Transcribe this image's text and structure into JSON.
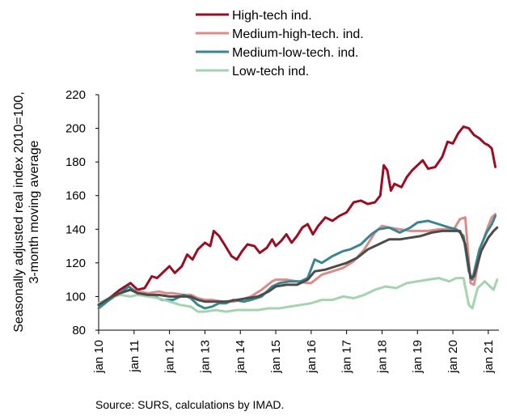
{
  "chart_data": {
    "type": "line",
    "ylabel": [
      "Seasonally adjusted real index 2010=100,",
      "3-month moving average"
    ],
    "ylim": [
      80,
      220
    ],
    "yticks": [
      80,
      100,
      120,
      140,
      160,
      180,
      200,
      220
    ],
    "xlim": [
      2010,
      2021.3
    ],
    "xticks": [
      {
        "label": "jan 10",
        "value": 2010
      },
      {
        "label": "jan 11",
        "value": 2011
      },
      {
        "label": "jan 12",
        "value": 2012
      },
      {
        "label": "jan 13",
        "value": 2013
      },
      {
        "label": "jan 14",
        "value": 2014
      },
      {
        "label": "jan 15",
        "value": 2015
      },
      {
        "label": "jan 16",
        "value": 2016
      },
      {
        "label": "jan 17",
        "value": 2017
      },
      {
        "label": "jan 18",
        "value": 2018
      },
      {
        "label": "jan 19",
        "value": 2019
      },
      {
        "label": "jan 20",
        "value": 2020
      },
      {
        "label": "jan 21",
        "value": 2021
      }
    ],
    "grid": false,
    "legend_position": "top",
    "source": "Source: SURS, calculations by IMAD.",
    "series": [
      {
        "name": "High-tech ind.",
        "color": "#9b0d22",
        "legend": true,
        "points": [
          [
            2010.0,
            95
          ],
          [
            2010.3,
            99
          ],
          [
            2010.6,
            104
          ],
          [
            2010.9,
            108
          ],
          [
            2011.1,
            104
          ],
          [
            2011.3,
            105
          ],
          [
            2011.5,
            112
          ],
          [
            2011.65,
            111
          ],
          [
            2011.8,
            114
          ],
          [
            2012.0,
            118
          ],
          [
            2012.15,
            114
          ],
          [
            2012.35,
            118
          ],
          [
            2012.5,
            125
          ],
          [
            2012.65,
            122
          ],
          [
            2012.8,
            128
          ],
          [
            2013.0,
            132
          ],
          [
            2013.15,
            130
          ],
          [
            2013.25,
            139
          ],
          [
            2013.4,
            136
          ],
          [
            2013.55,
            131
          ],
          [
            2013.75,
            124
          ],
          [
            2013.9,
            122
          ],
          [
            2014.05,
            127
          ],
          [
            2014.2,
            131
          ],
          [
            2014.4,
            130
          ],
          [
            2014.55,
            126
          ],
          [
            2014.75,
            129
          ],
          [
            2014.9,
            134
          ],
          [
            2015.0,
            130
          ],
          [
            2015.15,
            133
          ],
          [
            2015.3,
            137
          ],
          [
            2015.45,
            132
          ],
          [
            2015.6,
            136
          ],
          [
            2015.75,
            141
          ],
          [
            2015.9,
            143
          ],
          [
            2016.05,
            137
          ],
          [
            2016.2,
            142
          ],
          [
            2016.4,
            147
          ],
          [
            2016.6,
            145
          ],
          [
            2016.8,
            148
          ],
          [
            2017.0,
            150
          ],
          [
            2017.2,
            156
          ],
          [
            2017.4,
            157
          ],
          [
            2017.6,
            155
          ],
          [
            2017.8,
            156
          ],
          [
            2017.95,
            160
          ],
          [
            2018.05,
            178
          ],
          [
            2018.15,
            175
          ],
          [
            2018.25,
            163
          ],
          [
            2018.35,
            167
          ],
          [
            2018.55,
            165
          ],
          [
            2018.7,
            171
          ],
          [
            2018.85,
            175
          ],
          [
            2019.0,
            178
          ],
          [
            2019.15,
            181
          ],
          [
            2019.3,
            176
          ],
          [
            2019.5,
            177
          ],
          [
            2019.7,
            183
          ],
          [
            2019.85,
            192
          ],
          [
            2020.0,
            191
          ],
          [
            2020.15,
            197
          ],
          [
            2020.3,
            201
          ],
          [
            2020.45,
            200
          ],
          [
            2020.6,
            196
          ],
          [
            2020.75,
            194
          ],
          [
            2020.9,
            191
          ],
          [
            2021.0,
            190
          ],
          [
            2021.1,
            188
          ],
          [
            2021.2,
            177
          ]
        ]
      },
      {
        "name": "Medium-high-tech. ind.",
        "color": "#dc8b87",
        "legend": true,
        "points": [
          [
            2010.0,
            95
          ],
          [
            2010.3,
            99
          ],
          [
            2010.6,
            102
          ],
          [
            2010.9,
            104
          ],
          [
            2011.1,
            103
          ],
          [
            2011.4,
            102
          ],
          [
            2011.7,
            103
          ],
          [
            2011.9,
            102
          ],
          [
            2012.1,
            102
          ],
          [
            2012.4,
            101
          ],
          [
            2012.6,
            101
          ],
          [
            2012.8,
            99
          ],
          [
            2013.0,
            98
          ],
          [
            2013.2,
            98
          ],
          [
            2013.5,
            97
          ],
          [
            2013.8,
            97
          ],
          [
            2014.0,
            98
          ],
          [
            2014.3,
            100
          ],
          [
            2014.6,
            104
          ],
          [
            2014.9,
            109
          ],
          [
            2015.0,
            110
          ],
          [
            2015.3,
            110
          ],
          [
            2015.6,
            109
          ],
          [
            2015.9,
            108
          ],
          [
            2016.0,
            108
          ],
          [
            2016.3,
            113
          ],
          [
            2016.6,
            115
          ],
          [
            2016.9,
            117
          ],
          [
            2017.2,
            121
          ],
          [
            2017.5,
            128
          ],
          [
            2017.8,
            138
          ],
          [
            2018.0,
            142
          ],
          [
            2018.2,
            141
          ],
          [
            2018.5,
            140
          ],
          [
            2018.8,
            139
          ],
          [
            2019.0,
            139
          ],
          [
            2019.3,
            139
          ],
          [
            2019.6,
            140
          ],
          [
            2019.9,
            140
          ],
          [
            2020.0,
            139
          ],
          [
            2020.2,
            146
          ],
          [
            2020.35,
            147
          ],
          [
            2020.5,
            108
          ],
          [
            2020.6,
            107
          ],
          [
            2020.8,
            130
          ],
          [
            2021.0,
            142
          ],
          [
            2021.1,
            147
          ],
          [
            2021.2,
            149
          ]
        ]
      },
      {
        "name": "Medium-low-tech. ind.",
        "color": "#3a858e",
        "legend": true,
        "points": [
          [
            2010.0,
            93
          ],
          [
            2010.3,
            98
          ],
          [
            2010.6,
            102
          ],
          [
            2010.85,
            106
          ],
          [
            2011.1,
            102
          ],
          [
            2011.4,
            101
          ],
          [
            2011.6,
            100
          ],
          [
            2011.8,
            98
          ],
          [
            2012.1,
            98
          ],
          [
            2012.4,
            101
          ],
          [
            2012.6,
            99
          ],
          [
            2012.8,
            95
          ],
          [
            2013.0,
            93
          ],
          [
            2013.2,
            94
          ],
          [
            2013.4,
            96
          ],
          [
            2013.6,
            96
          ],
          [
            2013.8,
            98
          ],
          [
            2014.1,
            97
          ],
          [
            2014.3,
            98
          ],
          [
            2014.6,
            100
          ],
          [
            2014.9,
            106
          ],
          [
            2015.1,
            108
          ],
          [
            2015.4,
            109
          ],
          [
            2015.7,
            109
          ],
          [
            2015.9,
            111
          ],
          [
            2016.1,
            122
          ],
          [
            2016.3,
            120
          ],
          [
            2016.6,
            124
          ],
          [
            2016.9,
            127
          ],
          [
            2017.1,
            128
          ],
          [
            2017.4,
            131
          ],
          [
            2017.7,
            137
          ],
          [
            2017.9,
            140
          ],
          [
            2018.2,
            141
          ],
          [
            2018.5,
            138
          ],
          [
            2018.8,
            141
          ],
          [
            2019.0,
            144
          ],
          [
            2019.3,
            145
          ],
          [
            2019.6,
            143
          ],
          [
            2019.9,
            141
          ],
          [
            2020.1,
            140
          ],
          [
            2020.3,
            136
          ],
          [
            2020.45,
            115
          ],
          [
            2020.55,
            110
          ],
          [
            2020.75,
            128
          ],
          [
            2020.95,
            138
          ],
          [
            2021.1,
            143
          ],
          [
            2021.2,
            148
          ]
        ]
      },
      {
        "name": "Low-tech ind.",
        "color": "#a5d3b0",
        "legend": true,
        "points": [
          [
            2010.0,
            96
          ],
          [
            2010.3,
            99
          ],
          [
            2010.6,
            101
          ],
          [
            2010.9,
            100
          ],
          [
            2011.1,
            101
          ],
          [
            2011.4,
            100
          ],
          [
            2011.7,
            99
          ],
          [
            2012.0,
            97
          ],
          [
            2012.3,
            95
          ],
          [
            2012.6,
            94
          ],
          [
            2012.8,
            91
          ],
          [
            2013.0,
            91
          ],
          [
            2013.3,
            92
          ],
          [
            2013.6,
            91
          ],
          [
            2013.9,
            92
          ],
          [
            2014.2,
            92
          ],
          [
            2014.5,
            92
          ],
          [
            2014.8,
            93
          ],
          [
            2015.1,
            93
          ],
          [
            2015.4,
            94
          ],
          [
            2015.7,
            95
          ],
          [
            2016.0,
            96
          ],
          [
            2016.3,
            98
          ],
          [
            2016.6,
            98
          ],
          [
            2016.9,
            100
          ],
          [
            2017.2,
            99
          ],
          [
            2017.5,
            101
          ],
          [
            2017.8,
            104
          ],
          [
            2018.1,
            106
          ],
          [
            2018.4,
            105
          ],
          [
            2018.7,
            108
          ],
          [
            2019.0,
            109
          ],
          [
            2019.3,
            110
          ],
          [
            2019.6,
            111
          ],
          [
            2019.9,
            109
          ],
          [
            2020.1,
            111
          ],
          [
            2020.3,
            111
          ],
          [
            2020.45,
            95
          ],
          [
            2020.55,
            93
          ],
          [
            2020.7,
            105
          ],
          [
            2020.9,
            109
          ],
          [
            2021.05,
            106
          ],
          [
            2021.15,
            104
          ],
          [
            2021.25,
            110
          ]
        ]
      },
      {
        "name": "",
        "color": "#4b4b4b",
        "legend": false,
        "points": [
          [
            2010.0,
            95
          ],
          [
            2010.3,
            99
          ],
          [
            2010.6,
            102
          ],
          [
            2010.9,
            104
          ],
          [
            2011.1,
            102
          ],
          [
            2011.4,
            101
          ],
          [
            2011.7,
            101
          ],
          [
            2012.0,
            100
          ],
          [
            2012.3,
            100
          ],
          [
            2012.6,
            100
          ],
          [
            2012.8,
            98
          ],
          [
            2013.0,
            97
          ],
          [
            2013.3,
            97
          ],
          [
            2013.6,
            97
          ],
          [
            2013.9,
            98
          ],
          [
            2014.2,
            99
          ],
          [
            2014.5,
            100
          ],
          [
            2014.8,
            103
          ],
          [
            2015.0,
            106
          ],
          [
            2015.3,
            107
          ],
          [
            2015.6,
            107
          ],
          [
            2015.9,
            110
          ],
          [
            2016.1,
            115
          ],
          [
            2016.4,
            116
          ],
          [
            2016.7,
            118
          ],
          [
            2017.0,
            120
          ],
          [
            2017.3,
            123
          ],
          [
            2017.6,
            128
          ],
          [
            2017.9,
            131
          ],
          [
            2018.2,
            134
          ],
          [
            2018.5,
            134
          ],
          [
            2018.8,
            135
          ],
          [
            2019.1,
            136
          ],
          [
            2019.4,
            138
          ],
          [
            2019.7,
            139
          ],
          [
            2020.0,
            139
          ],
          [
            2020.2,
            139
          ],
          [
            2020.35,
            131
          ],
          [
            2020.5,
            111
          ],
          [
            2020.6,
            112
          ],
          [
            2020.8,
            127
          ],
          [
            2021.0,
            135
          ],
          [
            2021.15,
            139
          ],
          [
            2021.25,
            141
          ]
        ]
      }
    ]
  }
}
